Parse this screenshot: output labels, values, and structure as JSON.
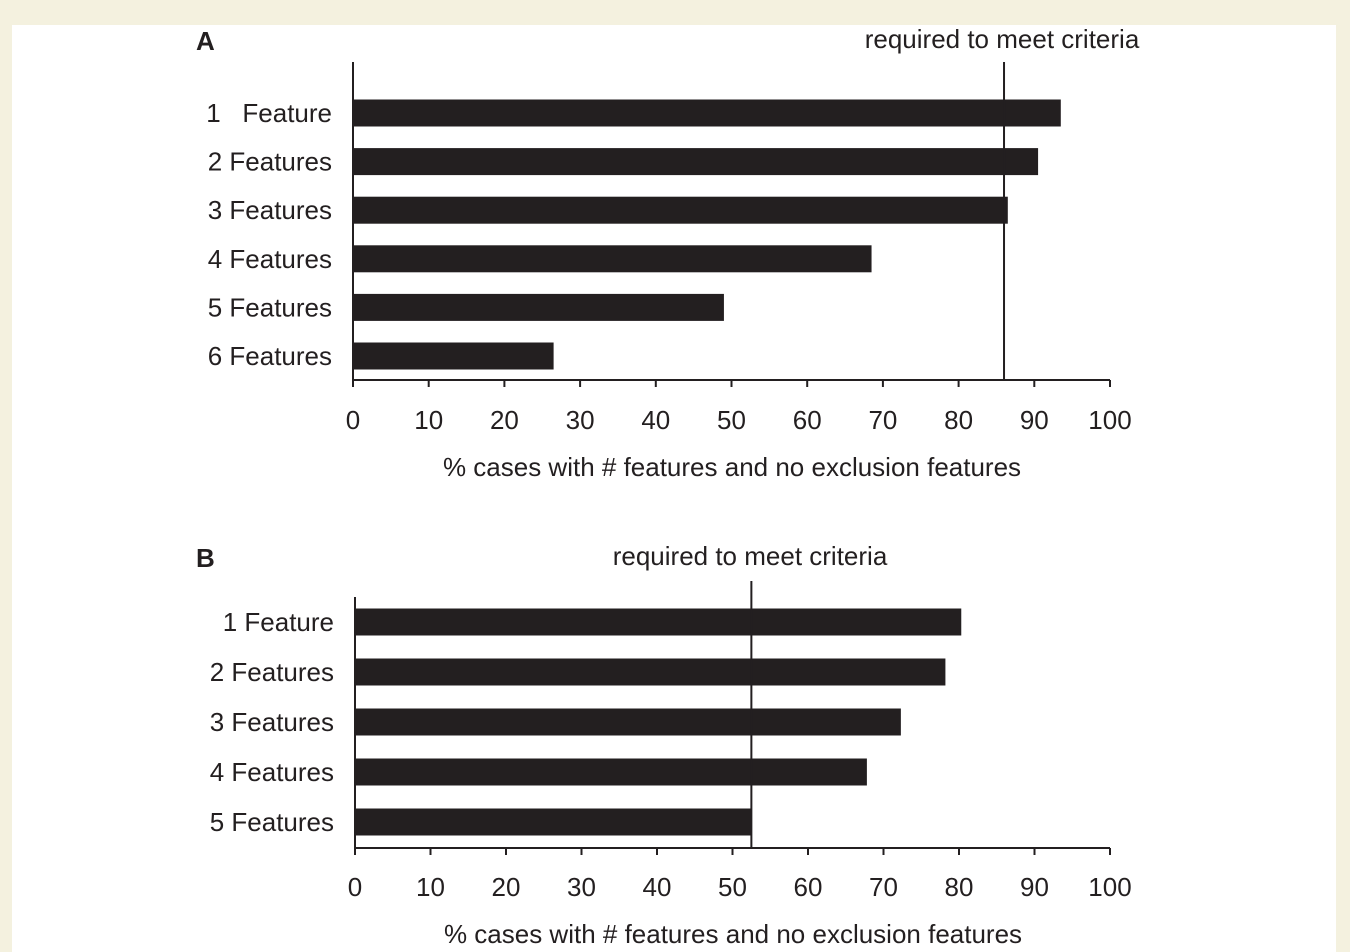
{
  "colors": {
    "page_border": "#f4f1df",
    "panel_background": "#ffffff",
    "bar_fill": "#231f20",
    "axis": "#231f20"
  },
  "chart_data": [
    {
      "panel": "A",
      "type": "bar",
      "orientation": "horizontal",
      "categories": [
        "1   Feature",
        "2 Features",
        "3 Features",
        "4 Features",
        "5 Features",
        "6 Features"
      ],
      "values": [
        93.5,
        90.5,
        86.5,
        68.5,
        49,
        26.5
      ],
      "xlabel": "% cases with # features and no exclusion features",
      "ylabel": "",
      "xlim": [
        0,
        100
      ],
      "xticks": [
        "0",
        "10",
        "20",
        "30",
        "40",
        "50",
        "60",
        "70",
        "80",
        "90",
        "100"
      ],
      "reference_line": {
        "value": 86,
        "label": "required to meet criteria"
      },
      "grid": false,
      "legend": "none"
    },
    {
      "panel": "B",
      "type": "bar",
      "orientation": "horizontal",
      "categories": [
        "1 Feature",
        "2 Features",
        "3 Features",
        "4 Features",
        "5 Features"
      ],
      "values": [
        80.3,
        78.2,
        72.3,
        67.8,
        52.5
      ],
      "xlabel": "% cases with # features and no exclusion features",
      "ylabel": "",
      "xlim": [
        0,
        100
      ],
      "xticks": [
        "0",
        "10",
        "20",
        "30",
        "40",
        "50",
        "60",
        "70",
        "80",
        "90",
        "100"
      ],
      "reference_line": {
        "value": 52.5,
        "label": "required to meet criteria"
      },
      "grid": false,
      "legend": "none"
    }
  ]
}
